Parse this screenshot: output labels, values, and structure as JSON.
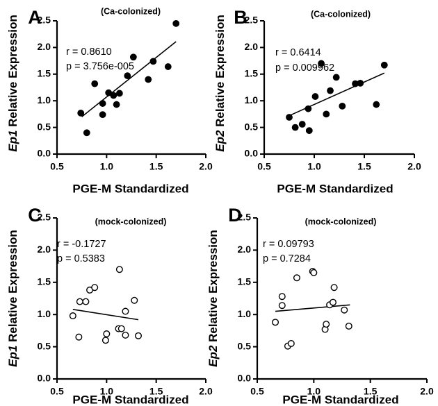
{
  "chart_data": [
    {
      "type": "scatter",
      "panel_label": "A",
      "title": "(Ca-colonized)",
      "xlabel": "PGE-M Standardized",
      "ylabel_gene": "Ep1",
      "ylabel_rest": " Relative Expression",
      "xlim": [
        0.5,
        2.0
      ],
      "ylim": [
        0.0,
        2.5
      ],
      "x_ticks": [
        "0.5",
        "1.0",
        "1.5",
        "2.0"
      ],
      "y_ticks": [
        "0.0",
        "0.5",
        "1.0",
        "1.5",
        "2.0",
        "2.5"
      ],
      "annotation": {
        "r": "r = 0.8610",
        "p": "p = 3.756e-005"
      },
      "marker": "filled",
      "points": [
        {
          "x": 0.74,
          "y": 0.77
        },
        {
          "x": 0.8,
          "y": 0.4
        },
        {
          "x": 0.88,
          "y": 1.32
        },
        {
          "x": 0.96,
          "y": 0.95
        },
        {
          "x": 0.96,
          "y": 0.74
        },
        {
          "x": 1.02,
          "y": 1.15
        },
        {
          "x": 1.07,
          "y": 1.1
        },
        {
          "x": 1.1,
          "y": 0.93
        },
        {
          "x": 1.13,
          "y": 1.14
        },
        {
          "x": 1.21,
          "y": 1.47
        },
        {
          "x": 1.27,
          "y": 1.82
        },
        {
          "x": 1.42,
          "y": 1.4
        },
        {
          "x": 1.47,
          "y": 1.74
        },
        {
          "x": 1.62,
          "y": 1.64
        },
        {
          "x": 1.7,
          "y": 2.45
        }
      ],
      "fit": {
        "x": [
          0.75,
          1.7
        ],
        "y": [
          0.7,
          2.11
        ]
      }
    },
    {
      "type": "scatter",
      "panel_label": "B",
      "title": "(Ca-colonized)",
      "xlabel": "PGE-M Standardized",
      "ylabel_gene": "Ep2",
      "ylabel_rest": " Relative Expression",
      "xlim": [
        0.5,
        2.0
      ],
      "ylim": [
        0.0,
        2.5
      ],
      "x_ticks": [
        "0.5",
        "1.0",
        "1.5",
        "2.0"
      ],
      "y_ticks": [
        "0.0",
        "0.5",
        "1.0",
        "1.5",
        "2.0",
        "2.5"
      ],
      "annotation": {
        "r": "r = 0.6414",
        "p": "p = 0.009962"
      },
      "marker": "filled",
      "points": [
        {
          "x": 0.75,
          "y": 0.69
        },
        {
          "x": 0.81,
          "y": 0.5
        },
        {
          "x": 0.88,
          "y": 0.56
        },
        {
          "x": 0.94,
          "y": 0.85
        },
        {
          "x": 0.95,
          "y": 0.44
        },
        {
          "x": 1.01,
          "y": 1.08
        },
        {
          "x": 1.07,
          "y": 1.7
        },
        {
          "x": 1.12,
          "y": 0.75
        },
        {
          "x": 1.16,
          "y": 1.19
        },
        {
          "x": 1.22,
          "y": 1.44
        },
        {
          "x": 1.28,
          "y": 0.9
        },
        {
          "x": 1.41,
          "y": 1.32
        },
        {
          "x": 1.46,
          "y": 1.33
        },
        {
          "x": 1.62,
          "y": 0.93
        },
        {
          "x": 1.7,
          "y": 1.67
        }
      ],
      "fit": {
        "x": [
          0.75,
          1.7
        ],
        "y": [
          0.72,
          1.52
        ]
      }
    },
    {
      "type": "scatter",
      "panel_label": "C",
      "title": "(mock-colonized)",
      "xlabel": "PGE-M Standardized",
      "ylabel_gene": "Ep1",
      "ylabel_rest": " Relative Expression",
      "xlim": [
        0.5,
        2.0
      ],
      "ylim": [
        0.0,
        2.5
      ],
      "x_ticks": [
        "0.5",
        "1.0",
        "1.5",
        "2.0"
      ],
      "y_ticks": [
        "0.0",
        "0.5",
        "1.0",
        "1.5",
        "2.0",
        "2.5"
      ],
      "annotation": {
        "r": "r = -0.1727",
        "p": "p = 0.5383"
      },
      "marker": "open",
      "points": [
        {
          "x": 0.66,
          "y": 0.98
        },
        {
          "x": 0.72,
          "y": 0.65
        },
        {
          "x": 0.73,
          "y": 1.2
        },
        {
          "x": 0.79,
          "y": 1.2
        },
        {
          "x": 0.83,
          "y": 1.38
        },
        {
          "x": 0.88,
          "y": 1.42
        },
        {
          "x": 0.99,
          "y": 0.6
        },
        {
          "x": 1.0,
          "y": 0.7
        },
        {
          "x": 1.12,
          "y": 0.78
        },
        {
          "x": 1.13,
          "y": 1.7
        },
        {
          "x": 1.15,
          "y": 0.78
        },
        {
          "x": 1.19,
          "y": 1.05
        },
        {
          "x": 1.19,
          "y": 0.68
        },
        {
          "x": 1.28,
          "y": 1.22
        },
        {
          "x": 1.32,
          "y": 0.67
        }
      ],
      "fit": {
        "x": [
          0.66,
          1.32
        ],
        "y": [
          1.08,
          0.92
        ]
      }
    },
    {
      "type": "scatter",
      "panel_label": "D",
      "title": "(mock-colonized)",
      "xlabel": "PGE-M Standardized",
      "ylabel_gene": "Ep2",
      "ylabel_rest": " Relative Expression",
      "xlim": [
        0.5,
        2.0
      ],
      "ylim": [
        0.0,
        2.5
      ],
      "x_ticks": [
        "0.5",
        "1.0",
        "1.5",
        "2.0"
      ],
      "y_ticks": [
        "0.0",
        "0.5",
        "1.0",
        "1.5",
        "2.0",
        "2.5"
      ],
      "annotation": {
        "r": "r = 0.09793",
        "p": "p = 0.7284"
      },
      "marker": "open",
      "points": [
        {
          "x": 0.66,
          "y": 0.88
        },
        {
          "x": 0.72,
          "y": 1.28
        },
        {
          "x": 0.72,
          "y": 1.14
        },
        {
          "x": 0.77,
          "y": 0.51
        },
        {
          "x": 0.8,
          "y": 0.55
        },
        {
          "x": 0.85,
          "y": 1.57
        },
        {
          "x": 0.99,
          "y": 1.67
        },
        {
          "x": 1.0,
          "y": 1.65
        },
        {
          "x": 1.1,
          "y": 0.77
        },
        {
          "x": 1.11,
          "y": 0.85
        },
        {
          "x": 1.14,
          "y": 1.15
        },
        {
          "x": 1.17,
          "y": 1.19
        },
        {
          "x": 1.18,
          "y": 1.42
        },
        {
          "x": 1.27,
          "y": 1.07
        },
        {
          "x": 1.31,
          "y": 0.82
        }
      ],
      "fit": {
        "x": [
          0.66,
          1.32
        ],
        "y": [
          1.05,
          1.15
        ]
      }
    }
  ]
}
